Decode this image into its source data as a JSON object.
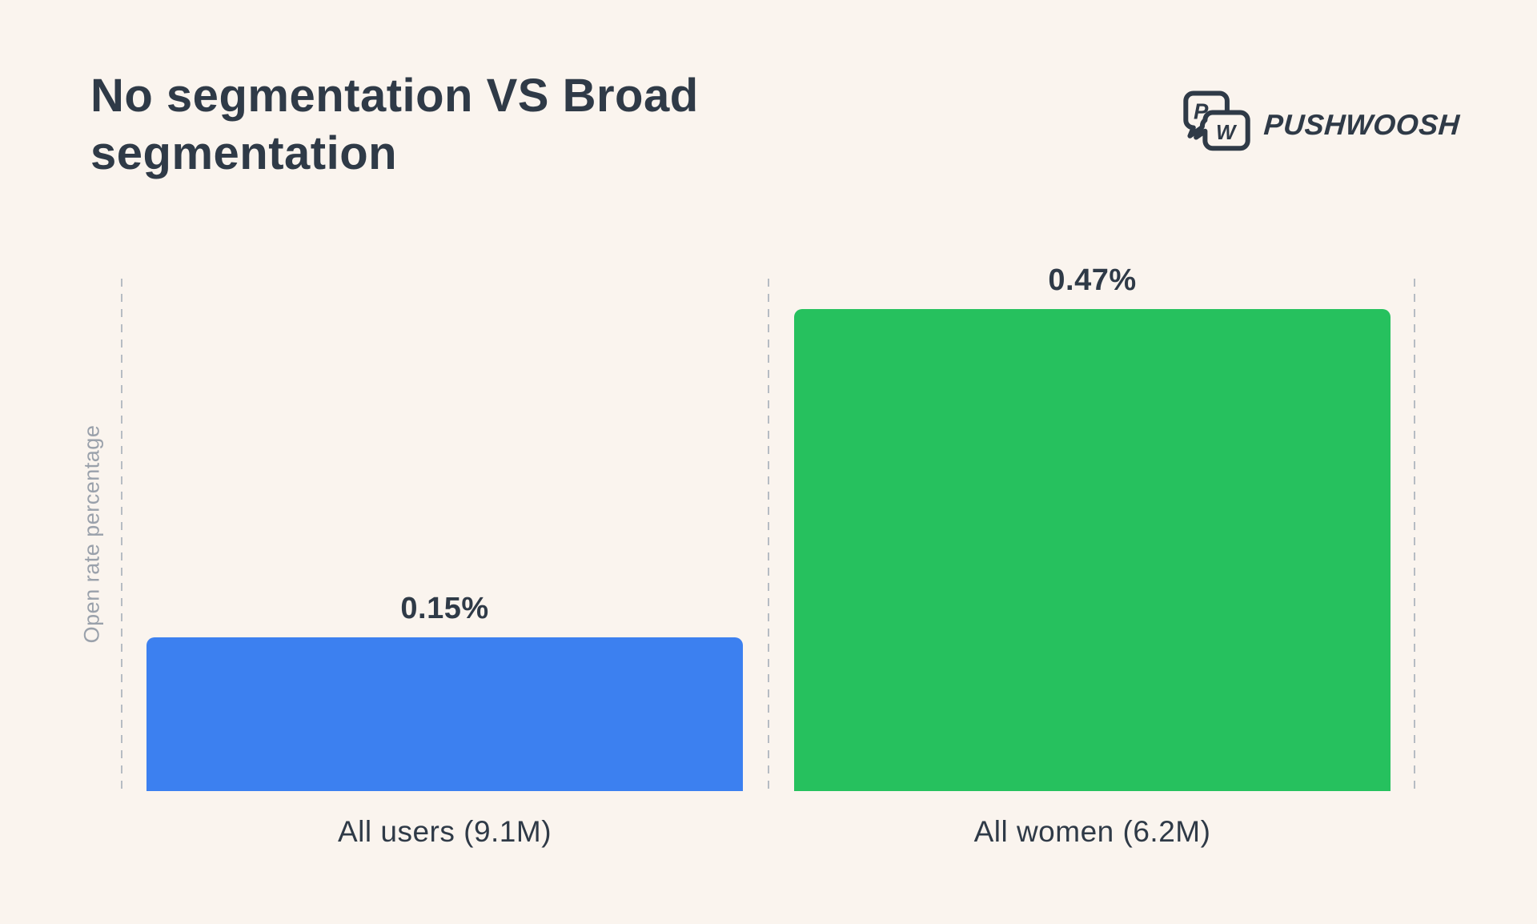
{
  "page": {
    "title": "No segmentation VS Broad segmentation",
    "brand": "PUSHWOOSH"
  },
  "colors": {
    "background": "#faf4ee",
    "text_dark": "#2f3a47",
    "axis_label_gray": "#9aa1ab",
    "guide_gray": "#b6bcc3",
    "bar_blue": "#3c80f0",
    "bar_green": "#26c15e"
  },
  "chart_data": {
    "type": "bar",
    "title": "No segmentation VS Broad segmentation",
    "xlabel": "",
    "ylabel": "Open rate percentage",
    "categories": [
      "All users (9.1M)",
      "All women (6.2M)"
    ],
    "values": [
      0.15,
      0.47
    ],
    "value_labels": [
      "0.15%",
      "0.47%"
    ],
    "bar_colors": [
      "#3c80f0",
      "#26c15e"
    ],
    "ylim": [
      0,
      0.5
    ],
    "grid": "vertical dashed guides between and beside bars",
    "legend": "none",
    "value_label_position": "above bars",
    "unit": "percent open rate"
  }
}
